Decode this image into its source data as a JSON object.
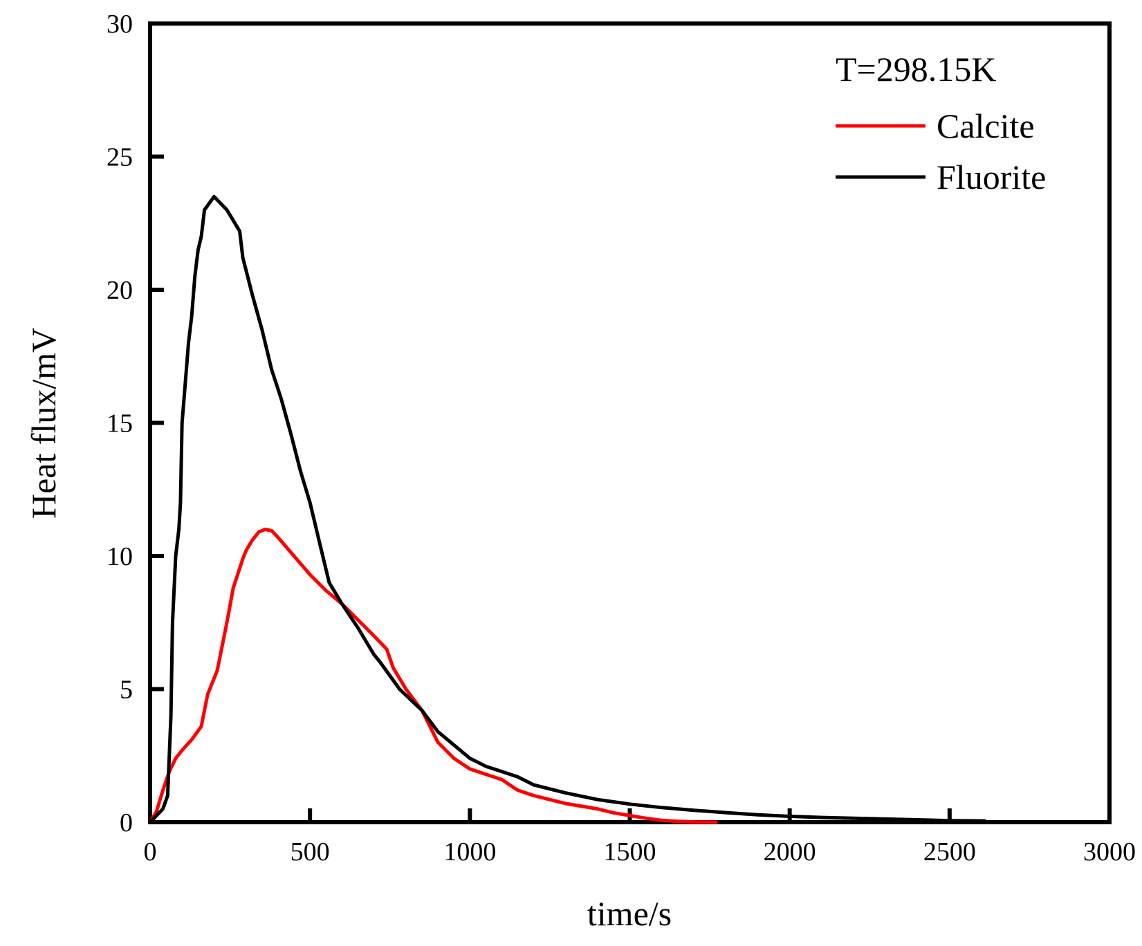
{
  "chart_data": {
    "type": "line",
    "title": "",
    "xlabel": "time/s",
    "ylabel": "Heat flux/mV",
    "xlim": [
      0,
      3000
    ],
    "ylim": [
      0,
      30
    ],
    "xticks": [
      0,
      500,
      1000,
      1500,
      2000,
      2500,
      3000
    ],
    "yticks": [
      0,
      5,
      10,
      15,
      20,
      25,
      30
    ],
    "grid": false,
    "legend_position": "top-right",
    "annotation": "T=298.15K",
    "series": [
      {
        "name": "Calcite",
        "color": "#ff0000",
        "x": [
          0,
          20,
          40,
          60,
          80,
          100,
          130,
          160,
          180,
          210,
          240,
          260,
          290,
          300,
          320,
          340,
          360,
          380,
          400,
          450,
          500,
          550,
          600,
          650,
          700,
          740,
          760,
          800,
          850,
          900,
          950,
          1000,
          1050,
          1100,
          1150,
          1200,
          1250,
          1300,
          1350,
          1400,
          1450,
          1500,
          1550,
          1600,
          1650,
          1700,
          1770
        ],
        "values": [
          0,
          0.4,
          1.2,
          1.9,
          2.4,
          2.7,
          3.1,
          3.6,
          4.8,
          5.7,
          7.5,
          8.8,
          9.9,
          10.2,
          10.6,
          10.9,
          11.0,
          10.95,
          10.7,
          10.0,
          9.3,
          8.7,
          8.2,
          7.6,
          7.0,
          6.5,
          5.8,
          5.0,
          4.2,
          3.0,
          2.4,
          2.0,
          1.8,
          1.6,
          1.2,
          1.0,
          0.85,
          0.7,
          0.6,
          0.5,
          0.35,
          0.25,
          0.15,
          0.07,
          0.03,
          0.01,
          0
        ]
      },
      {
        "name": "Fluorite",
        "color": "#000000",
        "x": [
          0,
          40,
          55,
          65,
          70,
          80,
          90,
          95,
          100,
          110,
          120,
          130,
          140,
          150,
          160,
          170,
          200,
          240,
          280,
          290,
          320,
          350,
          380,
          410,
          440,
          470,
          500,
          530,
          560,
          600,
          650,
          700,
          720,
          780,
          850,
          900,
          950,
          1000,
          1050,
          1100,
          1150,
          1200,
          1300,
          1400,
          1500,
          1600,
          1700,
          1800,
          1900,
          2000,
          2100,
          2200,
          2300,
          2400,
          2500,
          2610
        ],
        "values": [
          0,
          0.5,
          1.0,
          4.0,
          7.5,
          10.0,
          11.0,
          12.0,
          15.0,
          16.5,
          18.0,
          19.0,
          20.5,
          21.5,
          22.0,
          23.0,
          23.5,
          23.0,
          22.2,
          21.2,
          19.8,
          18.5,
          17.0,
          15.9,
          14.6,
          13.2,
          12.0,
          10.5,
          9.0,
          8.2,
          7.3,
          6.3,
          6.0,
          5.0,
          4.2,
          3.4,
          2.9,
          2.4,
          2.1,
          1.9,
          1.7,
          1.4,
          1.1,
          0.85,
          0.68,
          0.55,
          0.45,
          0.36,
          0.28,
          0.22,
          0.18,
          0.15,
          0.12,
          0.09,
          0.06,
          0.05
        ]
      }
    ]
  }
}
